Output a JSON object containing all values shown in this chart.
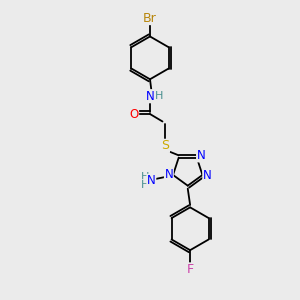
{
  "background_color": "#ebebeb",
  "atom_colors": {
    "Br": "#b8860b",
    "N": "#0000ff",
    "O": "#ff0000",
    "S": "#ccaa00",
    "F": "#cc44aa",
    "C": "#000000",
    "H": "#4a9090"
  },
  "lw": 1.3,
  "fs": 8.5
}
